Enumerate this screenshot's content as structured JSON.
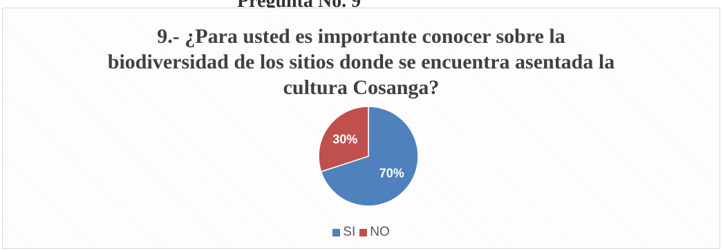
{
  "page": {
    "clipped_top_text": "Pregunta No. 9"
  },
  "chart_data": {
    "type": "pie",
    "title": "9.- ¿Para usted es importante conocer sobre la biodiversidad de los sitios donde se encuentra asentada la cultura Cosanga?",
    "title_lines": [
      "9.- ¿Para usted es importante conocer sobre la",
      "biodiversidad de los sitios donde se encuentra asentada la",
      "cultura Cosanga?"
    ],
    "categories": [
      "SI",
      "NO"
    ],
    "values": [
      70,
      30
    ],
    "data_labels": [
      "70%",
      "30%"
    ],
    "colors": [
      "#4f81bd",
      "#c0504d"
    ],
    "legend_position": "bottom",
    "start_angle": "12 o'clock, clockwise"
  }
}
